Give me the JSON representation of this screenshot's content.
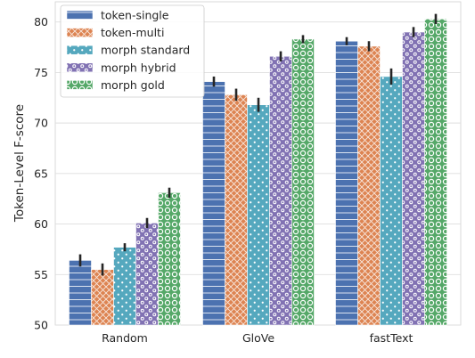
{
  "chart_data": {
    "type": "bar",
    "title": "",
    "xlabel": "",
    "ylabel": "Token-Level F-score",
    "ylim": [
      50,
      82
    ],
    "yticks": [
      50,
      55,
      60,
      65,
      70,
      75,
      80
    ],
    "grid": true,
    "legend_position": "top-left",
    "categories": [
      "Random",
      "GloVe",
      "fastText"
    ],
    "series": [
      {
        "name": "token-single",
        "values": [
          56.4,
          74.1,
          78.1
        ],
        "errors": [
          0.6,
          0.5,
          0.4
        ],
        "color": "#4c72b0",
        "pattern": "horizontal-lines"
      },
      {
        "name": "token-multi",
        "values": [
          55.5,
          72.8,
          77.6
        ],
        "errors": [
          0.6,
          0.6,
          0.5
        ],
        "color": "#dd8452",
        "pattern": "crosshatch"
      },
      {
        "name": "morph standard",
        "values": [
          57.7,
          71.8,
          74.6
        ],
        "errors": [
          0.4,
          0.7,
          0.8
        ],
        "color": "#55a8be",
        "pattern": "dots"
      },
      {
        "name": "morph hybrid",
        "values": [
          60.1,
          76.6,
          79.0
        ],
        "errors": [
          0.5,
          0.5,
          0.5
        ],
        "color": "#8172b3",
        "pattern": "small-circles"
      },
      {
        "name": "morph gold",
        "values": [
          63.1,
          78.3,
          80.3
        ],
        "errors": [
          0.5,
          0.4,
          0.5
        ],
        "color": "#55a868",
        "pattern": "large-circles"
      }
    ]
  }
}
